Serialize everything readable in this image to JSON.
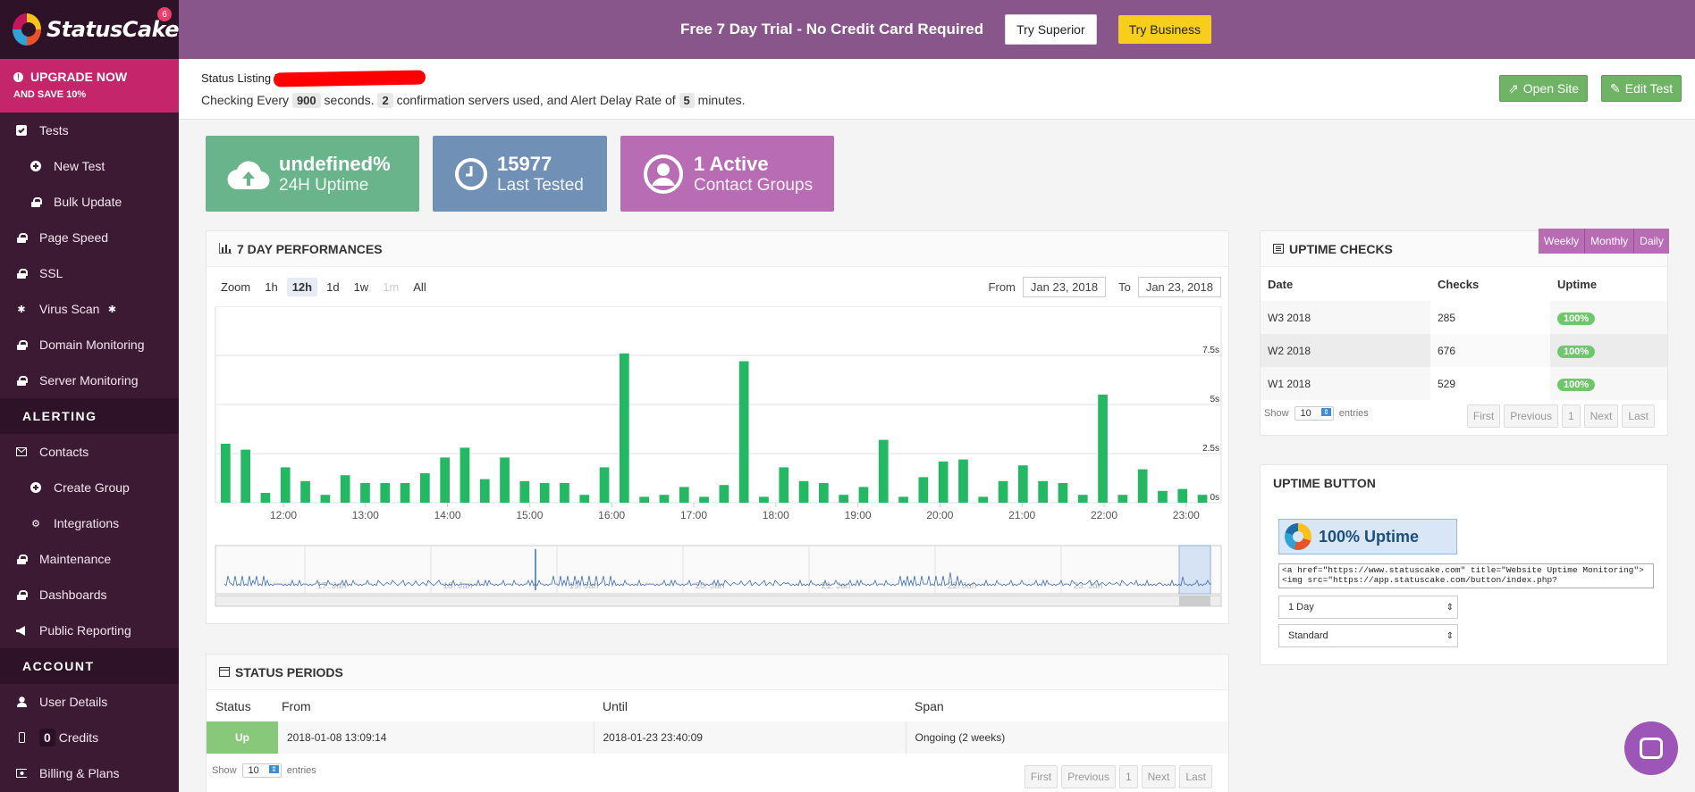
{
  "app": {
    "name": "StatusCake",
    "notification_count": "6"
  },
  "upgrade": {
    "line1": "UPGRADE NOW",
    "line2": "AND SAVE 10%"
  },
  "nav": {
    "tests": "Tests",
    "new_test": "New Test",
    "bulk_update": "Bulk Update",
    "page_speed": "Page Speed",
    "ssl": "SSL",
    "virus_scan": "Virus Scan",
    "domain_monitoring": "Domain Monitoring",
    "server_monitoring": "Server Monitoring",
    "alerting_section": "ALERTING",
    "contacts": "Contacts",
    "create_group": "Create Group",
    "integrations": "Integrations",
    "maintenance": "Maintenance",
    "dashboards": "Dashboards",
    "public_reporting": "Public Reporting",
    "account_section": "ACCOUNT",
    "user_details": "User Details",
    "credits_count": "0",
    "credits": "Credits",
    "billing": "Billing & Plans"
  },
  "topbar": {
    "trial_text": "Free 7 Day Trial - No Credit Card Required",
    "try_superior": "Try Superior",
    "try_business": "Try Business"
  },
  "header": {
    "title": "Status Listing For",
    "checking_every": "Checking Every",
    "interval": "900",
    "seconds": "seconds.",
    "servers": "2",
    "servers_text": "confirmation servers used, and Alert Delay Rate of",
    "delay": "5",
    "minutes": "minutes.",
    "open_site": "Open Site",
    "edit_test": "Edit Test"
  },
  "stats": [
    {
      "big": "undefined%",
      "small": "24H Uptime"
    },
    {
      "big": "15977",
      "small": "Last Tested"
    },
    {
      "big": "1 Active",
      "small": "Contact Groups"
    }
  ],
  "performance": {
    "title": "7 DAY PERFORMANCES",
    "zoom_label": "Zoom",
    "zoom_options": [
      "1h",
      "12h",
      "1d",
      "1w",
      "1m",
      "All"
    ],
    "from_label": "From",
    "from_value": "Jan 23, 2018",
    "to_label": "To",
    "to_value": "Jan 23, 2018"
  },
  "chart_data": {
    "type": "bar",
    "title": "7 DAY PERFORMANCES",
    "x_ticks": [
      "12:00",
      "13:00",
      "14:00",
      "15:00",
      "16:00",
      "17:00",
      "18:00",
      "19:00",
      "20:00",
      "21:00",
      "22:00",
      "23:00"
    ],
    "y_ticks": [
      "0s",
      "2.5s",
      "5s",
      "7.5s"
    ],
    "ylim": [
      0,
      10
    ],
    "values": [
      3.0,
      2.7,
      0.5,
      1.8,
      1.1,
      0.4,
      1.4,
      1.0,
      1.0,
      1.0,
      1.5,
      2.3,
      2.8,
      1.2,
      2.3,
      1.1,
      1.0,
      1.0,
      0.4,
      1.8,
      7.6,
      0.3,
      0.4,
      0.8,
      0.3,
      0.9,
      7.2,
      0.3,
      1.8,
      1.1,
      1.0,
      0.4,
      0.8,
      3.2,
      0.3,
      1.3,
      2.1,
      2.2,
      0.3,
      1.1,
      1.9,
      1.1,
      1.0,
      0.4,
      5.5,
      0.4,
      1.7,
      0.6,
      0.7,
      0.4
    ],
    "grid": true
  },
  "navigator": {
    "labels": [
      "17. Jan",
      "18. Jan",
      "19. Jan",
      "20. Jan",
      "21. Jan",
      "22. Jan",
      "23. Jan"
    ]
  },
  "uptime_checks": {
    "title": "UPTIME CHECKS",
    "tabs": [
      "Weekly",
      "Monthly",
      "Daily"
    ],
    "columns": [
      "Date",
      "Checks",
      "Uptime"
    ],
    "rows": [
      {
        "date": "W3 2018",
        "checks": "285",
        "uptime": "100%"
      },
      {
        "date": "W2 2018",
        "checks": "676",
        "uptime": "100%"
      },
      {
        "date": "W1 2018",
        "checks": "529",
        "uptime": "100%"
      }
    ],
    "show": "Show",
    "entries_value": "10",
    "entries": "entries",
    "pager": [
      "First",
      "Previous",
      "1",
      "Next",
      "Last"
    ]
  },
  "uptime_button": {
    "title": "UPTIME BUTTON",
    "badge_text": "100% Uptime",
    "code": "<a href=\"https://www.statuscake.com\" title=\"Website Uptime Monitoring\"><img src=\"https://app.statuscake.com/button/index.php?",
    "period": "1 Day",
    "style": "Standard"
  },
  "status_periods": {
    "title": "STATUS PERIODS",
    "columns": [
      "Status",
      "From",
      "Until",
      "Span"
    ],
    "rows": [
      {
        "status": "Up",
        "from": "2018-01-08 13:09:14",
        "until": "2018-01-23 23:40:09",
        "span": "Ongoing (2 weeks)"
      }
    ],
    "show": "Show",
    "entries_value": "10",
    "entries": "entries",
    "pager": [
      "First",
      "Previous",
      "1",
      "Next",
      "Last"
    ]
  },
  "colors": {
    "accent": "#c5256a",
    "sidebar": "#3d1a33",
    "bar": "#24b865",
    "topbar": "#88568a"
  }
}
